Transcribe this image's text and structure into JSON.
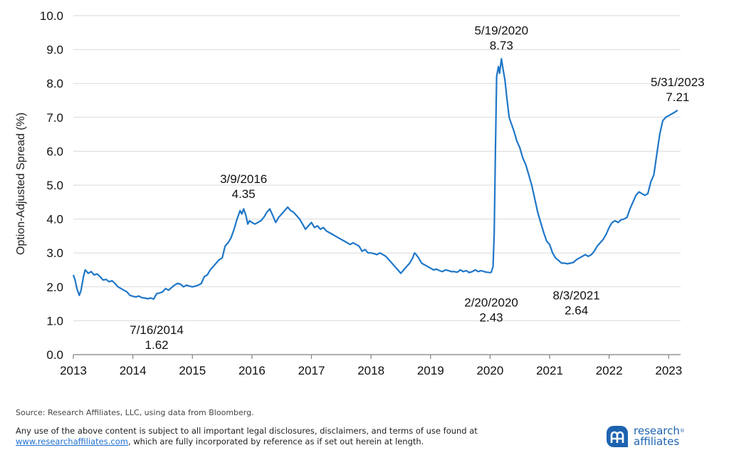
{
  "chart_data": {
    "type": "line",
    "ylabel": "Option-Adjusted Spread (%)",
    "xlabel": "",
    "ylim": [
      0,
      10
    ],
    "yticks": [
      "0.0",
      "1.0",
      "2.0",
      "3.0",
      "4.0",
      "5.0",
      "6.0",
      "7.0",
      "8.0",
      "9.0",
      "10.0"
    ],
    "xlim": [
      2013.0,
      2023.2
    ],
    "xticks": [
      "2013",
      "2014",
      "2015",
      "2016",
      "2017",
      "2018",
      "2019",
      "2020",
      "2021",
      "2022",
      "2023"
    ],
    "grid": "horizontal",
    "line_color": "#1f77c8",
    "series": [
      {
        "points": [
          [
            2013.0,
            2.35
          ],
          [
            2013.03,
            2.2
          ],
          [
            2013.06,
            1.95
          ],
          [
            2013.1,
            1.75
          ],
          [
            2013.13,
            1.9
          ],
          [
            2013.17,
            2.3
          ],
          [
            2013.2,
            2.5
          ],
          [
            2013.25,
            2.4
          ],
          [
            2013.3,
            2.45
          ],
          [
            2013.35,
            2.35
          ],
          [
            2013.4,
            2.38
          ],
          [
            2013.45,
            2.3
          ],
          [
            2013.5,
            2.2
          ],
          [
            2013.55,
            2.22
          ],
          [
            2013.6,
            2.15
          ],
          [
            2013.65,
            2.18
          ],
          [
            2013.7,
            2.1
          ],
          [
            2013.75,
            2.0
          ],
          [
            2013.8,
            1.95
          ],
          [
            2013.85,
            1.9
          ],
          [
            2013.9,
            1.85
          ],
          [
            2013.95,
            1.75
          ],
          [
            2014.0,
            1.72
          ],
          [
            2014.05,
            1.7
          ],
          [
            2014.1,
            1.73
          ],
          [
            2014.15,
            1.68
          ],
          [
            2014.2,
            1.67
          ],
          [
            2014.25,
            1.65
          ],
          [
            2014.3,
            1.67
          ],
          [
            2014.35,
            1.64
          ],
          [
            2014.4,
            1.8
          ],
          [
            2014.45,
            1.82
          ],
          [
            2014.5,
            1.85
          ],
          [
            2014.55,
            1.95
          ],
          [
            2014.6,
            1.9
          ],
          [
            2014.65,
            1.98
          ],
          [
            2014.7,
            2.05
          ],
          [
            2014.75,
            2.1
          ],
          [
            2014.8,
            2.08
          ],
          [
            2014.85,
            2.0
          ],
          [
            2014.9,
            2.05
          ],
          [
            2014.95,
            2.02
          ],
          [
            2015.0,
            2.0
          ],
          [
            2015.05,
            2.02
          ],
          [
            2015.1,
            2.05
          ],
          [
            2015.15,
            2.1
          ],
          [
            2015.2,
            2.3
          ],
          [
            2015.25,
            2.35
          ],
          [
            2015.3,
            2.5
          ],
          [
            2015.35,
            2.6
          ],
          [
            2015.4,
            2.7
          ],
          [
            2015.45,
            2.8
          ],
          [
            2015.5,
            2.85
          ],
          [
            2015.55,
            3.2
          ],
          [
            2015.6,
            3.3
          ],
          [
            2015.65,
            3.45
          ],
          [
            2015.7,
            3.7
          ],
          [
            2015.75,
            4.0
          ],
          [
            2015.8,
            4.25
          ],
          [
            2015.83,
            4.15
          ],
          [
            2015.86,
            4.3
          ],
          [
            2015.9,
            4.1
          ],
          [
            2015.93,
            3.85
          ],
          [
            2015.96,
            3.95
          ],
          [
            2016.0,
            3.9
          ],
          [
            2016.05,
            3.85
          ],
          [
            2016.1,
            3.9
          ],
          [
            2016.15,
            3.95
          ],
          [
            2016.2,
            4.05
          ],
          [
            2016.25,
            4.2
          ],
          [
            2016.3,
            4.3
          ],
          [
            2016.35,
            4.1
          ],
          [
            2016.4,
            3.9
          ],
          [
            2016.45,
            4.05
          ],
          [
            2016.5,
            4.15
          ],
          [
            2016.55,
            4.25
          ],
          [
            2016.6,
            4.35
          ],
          [
            2016.65,
            4.25
          ],
          [
            2016.7,
            4.2
          ],
          [
            2016.75,
            4.1
          ],
          [
            2016.8,
            4.0
          ],
          [
            2016.85,
            3.85
          ],
          [
            2016.9,
            3.7
          ],
          [
            2016.95,
            3.8
          ],
          [
            2017.0,
            3.9
          ],
          [
            2017.05,
            3.75
          ],
          [
            2017.1,
            3.8
          ],
          [
            2017.15,
            3.7
          ],
          [
            2017.2,
            3.75
          ],
          [
            2017.25,
            3.65
          ],
          [
            2017.3,
            3.6
          ],
          [
            2017.35,
            3.55
          ],
          [
            2017.4,
            3.5
          ],
          [
            2017.45,
            3.45
          ],
          [
            2017.5,
            3.4
          ],
          [
            2017.55,
            3.35
          ],
          [
            2017.6,
            3.3
          ],
          [
            2017.65,
            3.25
          ],
          [
            2017.7,
            3.3
          ],
          [
            2017.75,
            3.25
          ],
          [
            2017.8,
            3.2
          ],
          [
            2017.85,
            3.05
          ],
          [
            2017.9,
            3.1
          ],
          [
            2017.95,
            3.0
          ],
          [
            2018.0,
            3.0
          ],
          [
            2018.05,
            2.98
          ],
          [
            2018.1,
            2.95
          ],
          [
            2018.15,
            3.0
          ],
          [
            2018.2,
            2.95
          ],
          [
            2018.25,
            2.9
          ],
          [
            2018.3,
            2.8
          ],
          [
            2018.35,
            2.7
          ],
          [
            2018.4,
            2.6
          ],
          [
            2018.45,
            2.5
          ],
          [
            2018.5,
            2.4
          ],
          [
            2018.55,
            2.5
          ],
          [
            2018.6,
            2.6
          ],
          [
            2018.65,
            2.7
          ],
          [
            2018.7,
            2.85
          ],
          [
            2018.73,
            3.0
          ],
          [
            2018.76,
            2.95
          ],
          [
            2018.8,
            2.85
          ],
          [
            2018.85,
            2.7
          ],
          [
            2018.9,
            2.65
          ],
          [
            2018.95,
            2.6
          ],
          [
            2019.0,
            2.55
          ],
          [
            2019.05,
            2.5
          ],
          [
            2019.1,
            2.52
          ],
          [
            2019.15,
            2.48
          ],
          [
            2019.2,
            2.45
          ],
          [
            2019.25,
            2.5
          ],
          [
            2019.3,
            2.48
          ],
          [
            2019.35,
            2.45
          ],
          [
            2019.4,
            2.45
          ],
          [
            2019.45,
            2.43
          ],
          [
            2019.5,
            2.5
          ],
          [
            2019.55,
            2.45
          ],
          [
            2019.6,
            2.48
          ],
          [
            2019.65,
            2.42
          ],
          [
            2019.7,
            2.45
          ],
          [
            2019.75,
            2.5
          ],
          [
            2019.8,
            2.45
          ],
          [
            2019.85,
            2.48
          ],
          [
            2019.9,
            2.45
          ],
          [
            2019.95,
            2.43
          ],
          [
            2020.0,
            2.42
          ],
          [
            2020.02,
            2.43
          ],
          [
            2020.05,
            2.6
          ],
          [
            2020.07,
            3.6
          ],
          [
            2020.09,
            6.0
          ],
          [
            2020.11,
            8.2
          ],
          [
            2020.14,
            8.5
          ],
          [
            2020.16,
            8.3
          ],
          [
            2020.19,
            8.73
          ],
          [
            2020.22,
            8.4
          ],
          [
            2020.25,
            8.1
          ],
          [
            2020.28,
            7.6
          ],
          [
            2020.32,
            7.0
          ],
          [
            2020.36,
            6.8
          ],
          [
            2020.4,
            6.6
          ],
          [
            2020.45,
            6.3
          ],
          [
            2020.5,
            6.1
          ],
          [
            2020.55,
            5.8
          ],
          [
            2020.6,
            5.6
          ],
          [
            2020.65,
            5.3
          ],
          [
            2020.7,
            5.0
          ],
          [
            2020.75,
            4.6
          ],
          [
            2020.8,
            4.2
          ],
          [
            2020.85,
            3.9
          ],
          [
            2020.9,
            3.6
          ],
          [
            2020.95,
            3.35
          ],
          [
            2021.0,
            3.25
          ],
          [
            2021.05,
            3.0
          ],
          [
            2021.1,
            2.85
          ],
          [
            2021.15,
            2.78
          ],
          [
            2021.2,
            2.7
          ],
          [
            2021.25,
            2.7
          ],
          [
            2021.3,
            2.68
          ],
          [
            2021.35,
            2.7
          ],
          [
            2021.4,
            2.72
          ],
          [
            2021.45,
            2.8
          ],
          [
            2021.5,
            2.85
          ],
          [
            2021.55,
            2.9
          ],
          [
            2021.6,
            2.95
          ],
          [
            2021.65,
            2.9
          ],
          [
            2021.7,
            2.95
          ],
          [
            2021.75,
            3.05
          ],
          [
            2021.8,
            3.2
          ],
          [
            2021.85,
            3.3
          ],
          [
            2021.9,
            3.4
          ],
          [
            2021.95,
            3.55
          ],
          [
            2022.0,
            3.75
          ],
          [
            2022.05,
            3.9
          ],
          [
            2022.1,
            3.95
          ],
          [
            2022.15,
            3.9
          ],
          [
            2022.2,
            3.98
          ],
          [
            2022.25,
            4.0
          ],
          [
            2022.3,
            4.05
          ],
          [
            2022.35,
            4.3
          ],
          [
            2022.4,
            4.5
          ],
          [
            2022.45,
            4.7
          ],
          [
            2022.5,
            4.8
          ],
          [
            2022.55,
            4.75
          ],
          [
            2022.6,
            4.7
          ],
          [
            2022.65,
            4.75
          ],
          [
            2022.7,
            5.1
          ],
          [
            2022.75,
            5.3
          ],
          [
            2022.8,
            5.9
          ],
          [
            2022.85,
            6.5
          ],
          [
            2022.9,
            6.9
          ],
          [
            2022.95,
            7.0
          ],
          [
            2023.0,
            7.05
          ],
          [
            2023.05,
            7.1
          ],
          [
            2023.1,
            7.15
          ],
          [
            2023.15,
            7.21
          ]
        ]
      }
    ],
    "annotations": [
      {
        "date": "7/16/2014",
        "value": "1.62",
        "x": 2014.4,
        "y": 1.62,
        "pos": "below"
      },
      {
        "date": "3/9/2016",
        "value": "4.35",
        "x": 2015.86,
        "y": 4.35,
        "pos": "above"
      },
      {
        "date": "2/20/2020",
        "value": "2.43",
        "x": 2020.02,
        "y": 2.43,
        "pos": "below"
      },
      {
        "date": "5/19/2020",
        "value": "8.73",
        "x": 2020.19,
        "y": 8.73,
        "pos": "above"
      },
      {
        "date": "8/3/2021",
        "value": "2.64",
        "x": 2021.45,
        "y": 2.64,
        "pos": "below"
      },
      {
        "date": "5/31/2023",
        "value": "7.21",
        "x": 2023.15,
        "y": 7.21,
        "pos": "above"
      }
    ]
  },
  "footer": {
    "source": "Source: Research Affiliates, LLC, using data from Bloomberg.",
    "disclaimer_line1": "Any use of the above content is subject to all important legal disclosures, disclaimers, and terms of use found at",
    "disclaimer_link": "www.researchaffiliates.com",
    "disclaimer_line2_rest": ", which are fully incorporated by reference as if set out herein at length."
  },
  "logo": {
    "word1": "research",
    "word2": "affiliates",
    "tm": "®",
    "color": "#1d63b0"
  }
}
